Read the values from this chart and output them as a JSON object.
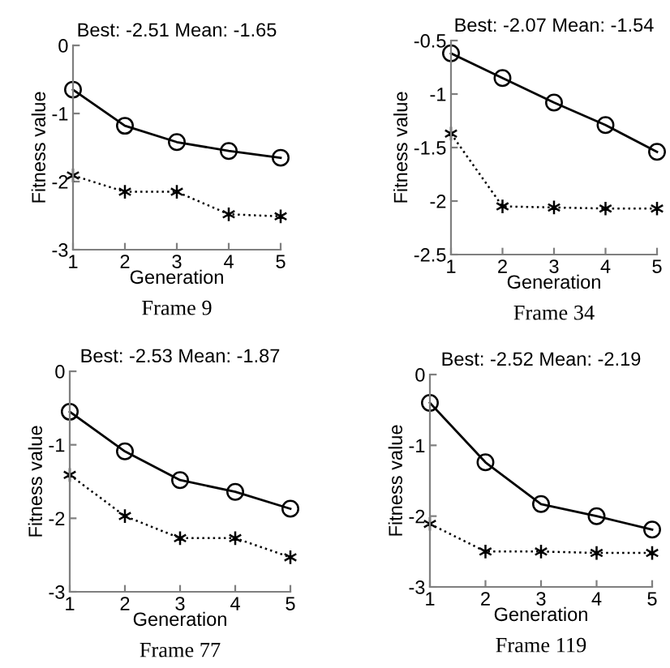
{
  "chart_data": [
    {
      "type": "line",
      "title": "Best: -2.51 Mean: -1.65",
      "xlabel": "Generation",
      "ylabel": "Fitness value",
      "annotations": [
        "Frame 9"
      ],
      "x": [
        1,
        2,
        3,
        4,
        5
      ],
      "xlim": [
        1,
        5
      ],
      "xticks": [
        1,
        2,
        3,
        4,
        5
      ],
      "ylim": [
        -3,
        0
      ],
      "yticks": [
        -3,
        -2,
        -1,
        0
      ],
      "grid": false,
      "legend": false,
      "series": [
        {
          "color": "#000000",
          "marker": "circle",
          "line_style": "solid",
          "values": [
            -0.65,
            -1.18,
            -1.42,
            -1.55,
            -1.65
          ]
        },
        {
          "color": "#000000",
          "marker": "cross",
          "line_style": "dotted",
          "values": [
            -1.91,
            -2.15,
            -2.15,
            -2.48,
            -2.51
          ]
        }
      ]
    },
    {
      "type": "line",
      "title": "Best: -2.07 Mean: -1.54",
      "xlabel": "Generation",
      "ylabel": "Fitness value",
      "annotations": [
        "Frame 34"
      ],
      "x": [
        1,
        2,
        3,
        4,
        5
      ],
      "xlim": [
        1,
        5
      ],
      "xticks": [
        1,
        2,
        3,
        4,
        5
      ],
      "ylim": [
        -2.5,
        -0.5
      ],
      "yticks": [
        -2.5,
        -2,
        -1.5,
        -1,
        -0.5
      ],
      "grid": false,
      "legend": false,
      "series": [
        {
          "color": "#000000",
          "marker": "circle",
          "line_style": "solid",
          "values": [
            -0.62,
            -0.85,
            -1.08,
            -1.29,
            -1.54
          ]
        },
        {
          "color": "#000000",
          "marker": "cross",
          "line_style": "dotted",
          "values": [
            -1.37,
            -2.05,
            -2.06,
            -2.07,
            -2.07
          ]
        }
      ]
    },
    {
      "type": "line",
      "title": "Best: -2.53 Mean: -1.87",
      "xlabel": "Generation",
      "ylabel": "Fitness value",
      "annotations": [
        "Frame 77"
      ],
      "x": [
        1,
        2,
        3,
        4,
        5
      ],
      "xlim": [
        1,
        5
      ],
      "xticks": [
        1,
        2,
        3,
        4,
        5
      ],
      "ylim": [
        -3,
        0
      ],
      "yticks": [
        -3,
        -2,
        -1,
        0
      ],
      "grid": false,
      "legend": false,
      "series": [
        {
          "color": "#000000",
          "marker": "circle",
          "line_style": "solid",
          "values": [
            -0.55,
            -1.09,
            -1.48,
            -1.64,
            -1.87
          ]
        },
        {
          "color": "#000000",
          "marker": "cross",
          "line_style": "dotted",
          "values": [
            -1.41,
            -1.97,
            -2.27,
            -2.27,
            -2.53
          ]
        }
      ]
    },
    {
      "type": "line",
      "title": "Best: -2.52 Mean: -2.19",
      "xlabel": "Generation",
      "ylabel": "Fitness value",
      "annotations": [
        "Frame 119"
      ],
      "x": [
        1,
        2,
        3,
        4,
        5
      ],
      "xlim": [
        1,
        5
      ],
      "xticks": [
        1,
        2,
        3,
        4,
        5
      ],
      "ylim": [
        -3,
        0
      ],
      "yticks": [
        -3,
        -2,
        -1,
        0
      ],
      "grid": false,
      "legend": false,
      "series": [
        {
          "color": "#000000",
          "marker": "circle",
          "line_style": "solid",
          "values": [
            -0.4,
            -1.24,
            -1.83,
            -2.0,
            -2.19
          ]
        },
        {
          "color": "#000000",
          "marker": "cross",
          "line_style": "dotted",
          "values": [
            -2.11,
            -2.5,
            -2.5,
            -2.52,
            -2.52
          ]
        }
      ]
    }
  ]
}
